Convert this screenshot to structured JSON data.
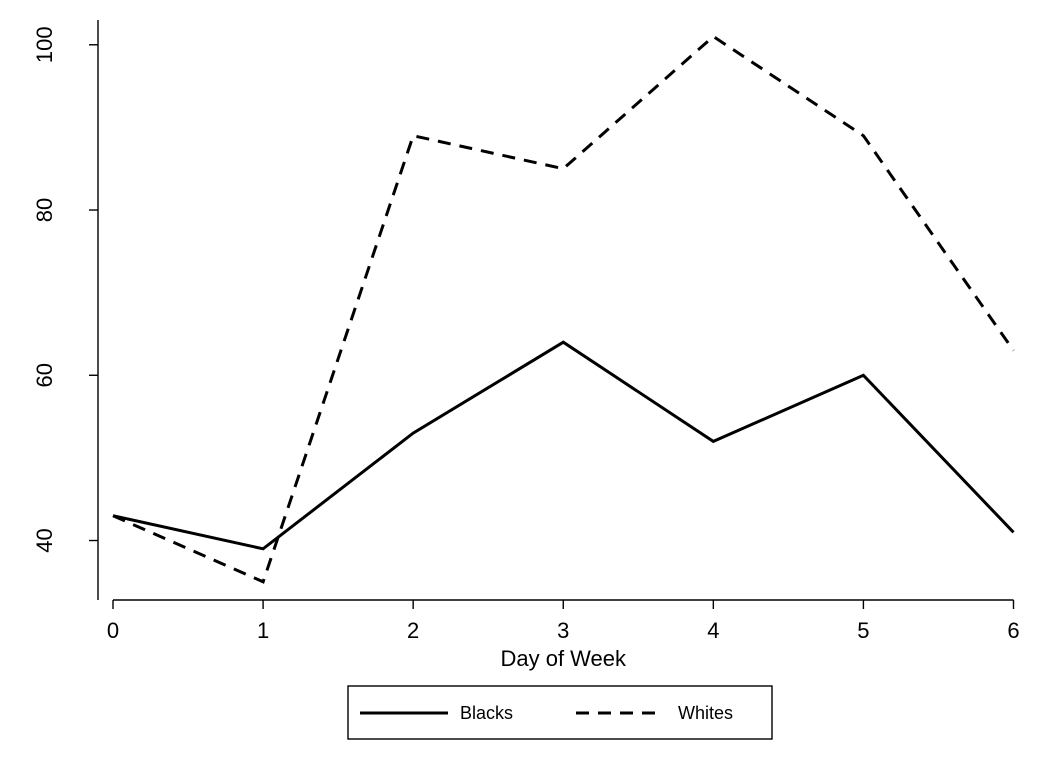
{
  "chart_data": {
    "type": "line",
    "title": "",
    "xlabel": "Day of Week",
    "ylabel": "",
    "x": [
      0,
      1,
      2,
      3,
      4,
      5,
      6
    ],
    "xticks": [
      0,
      1,
      2,
      3,
      4,
      5,
      6
    ],
    "yticks": [
      40,
      60,
      80,
      100
    ],
    "xlim": [
      -0.1,
      6.05
    ],
    "ylim": [
      32.8,
      103
    ],
    "grid": false,
    "legend": "bottom-center",
    "series": [
      {
        "name": "Blacks",
        "style": "solid",
        "color": "#000000",
        "values": [
          43,
          39,
          53,
          64,
          52,
          60,
          41
        ]
      },
      {
        "name": "Whites",
        "style": "dashed",
        "color": "#000000",
        "values": [
          43,
          35,
          89,
          85,
          101,
          89,
          63
        ]
      }
    ]
  }
}
